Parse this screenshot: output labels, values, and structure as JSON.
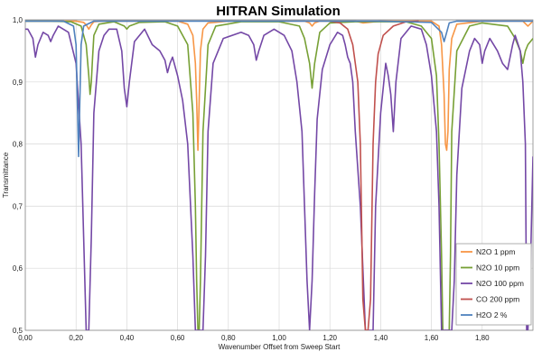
{
  "chart_data": {
    "type": "line",
    "title": "HITRAN Simulation",
    "xlabel": "Wavenumber Offset from Sweep Start",
    "ylabel": "Transmittance",
    "xlim": [
      0,
      2.0
    ],
    "ylim": [
      0.5,
      1.0
    ],
    "x_ticks": [
      "0,00",
      "0,20",
      "0,40",
      "0,60",
      "0,80",
      "1,00",
      "1,20",
      "1,40",
      "1,60",
      "1,80"
    ],
    "y_ticks": [
      "0,5",
      "0,6",
      "0,7",
      "0,8",
      "0,9",
      "1,0"
    ],
    "grid": true,
    "legend_position": "bottom-right",
    "series": [
      {
        "name": "N2O 1 ppm",
        "color": "#f79646",
        "x": [
          0.0,
          0.1,
          0.2,
          0.23,
          0.24,
          0.25,
          0.26,
          0.27,
          0.3,
          0.4,
          0.6,
          0.64,
          0.66,
          0.67,
          0.675,
          0.68,
          0.685,
          0.69,
          0.7,
          0.72,
          0.8,
          1.0,
          1.1,
          1.12,
          1.13,
          1.14,
          1.16,
          1.3,
          1.33,
          1.4,
          1.5,
          1.6,
          1.63,
          1.64,
          1.65,
          1.655,
          1.66,
          1.665,
          1.67,
          1.68,
          1.7,
          1.8,
          1.96,
          1.98,
          2.0
        ],
        "y": [
          0.998,
          0.998,
          0.998,
          0.996,
          0.992,
          0.985,
          0.992,
          0.997,
          0.998,
          0.998,
          0.998,
          0.993,
          0.975,
          0.93,
          0.87,
          0.79,
          0.87,
          0.95,
          0.985,
          0.995,
          0.998,
          0.998,
          0.998,
          0.995,
          0.99,
          0.995,
          0.998,
          0.998,
          0.995,
          0.998,
          0.998,
          0.998,
          0.99,
          0.96,
          0.88,
          0.8,
          0.79,
          0.82,
          0.92,
          0.97,
          0.993,
          0.998,
          0.998,
          0.99,
          0.998
        ]
      },
      {
        "name": "N2O 10 ppm",
        "color": "#77a035",
        "x": [
          0.0,
          0.1,
          0.18,
          0.22,
          0.24,
          0.25,
          0.255,
          0.26,
          0.265,
          0.27,
          0.29,
          0.35,
          0.39,
          0.4,
          0.41,
          0.45,
          0.55,
          0.6,
          0.64,
          0.66,
          0.67,
          0.675,
          0.68,
          0.685,
          0.69,
          0.7,
          0.72,
          0.75,
          0.85,
          1.0,
          1.08,
          1.1,
          1.12,
          1.13,
          1.14,
          1.16,
          1.2,
          1.3,
          1.4,
          1.5,
          1.56,
          1.6,
          1.62,
          1.63,
          1.64,
          1.645,
          1.65,
          1.66,
          1.67,
          1.675,
          1.68,
          1.7,
          1.75,
          1.8,
          1.9,
          1.93,
          1.95,
          1.96,
          1.97,
          1.98,
          2.0
        ],
        "y": [
          0.998,
          0.998,
          0.997,
          0.99,
          0.96,
          0.91,
          0.88,
          0.9,
          0.94,
          0.975,
          0.993,
          0.997,
          0.99,
          0.985,
          0.99,
          0.996,
          0.997,
          0.99,
          0.96,
          0.85,
          0.7,
          0.58,
          0.5,
          0.5,
          0.58,
          0.82,
          0.96,
          0.99,
          0.997,
          0.997,
          0.99,
          0.97,
          0.93,
          0.89,
          0.93,
          0.98,
          0.995,
          0.997,
          0.997,
          0.997,
          0.99,
          0.97,
          0.91,
          0.8,
          0.62,
          0.5,
          0.5,
          0.5,
          0.5,
          0.62,
          0.82,
          0.95,
          0.99,
          0.995,
          0.99,
          0.97,
          0.95,
          0.93,
          0.95,
          0.96,
          0.97
        ]
      },
      {
        "name": "N2O 100 ppm",
        "color": "#7448a6",
        "x": [
          0.0,
          0.01,
          0.03,
          0.04,
          0.05,
          0.07,
          0.09,
          0.1,
          0.11,
          0.13,
          0.17,
          0.2,
          0.22,
          0.23,
          0.24,
          0.245,
          0.25,
          0.26,
          0.27,
          0.29,
          0.31,
          0.33,
          0.36,
          0.38,
          0.39,
          0.4,
          0.41,
          0.43,
          0.47,
          0.5,
          0.53,
          0.55,
          0.56,
          0.57,
          0.58,
          0.6,
          0.62,
          0.64,
          0.66,
          0.67,
          0.68,
          0.69,
          0.7,
          0.71,
          0.72,
          0.74,
          0.78,
          0.85,
          0.88,
          0.9,
          0.91,
          0.92,
          0.94,
          0.98,
          1.02,
          1.05,
          1.07,
          1.09,
          1.1,
          1.11,
          1.12,
          1.13,
          1.14,
          1.15,
          1.17,
          1.2,
          1.23,
          1.25,
          1.26,
          1.27,
          1.28,
          1.29,
          1.3,
          1.32,
          1.34,
          1.35,
          1.36,
          1.37,
          1.38,
          1.4,
          1.42,
          1.43,
          1.44,
          1.45,
          1.46,
          1.48,
          1.52,
          1.56,
          1.58,
          1.6,
          1.62,
          1.63,
          1.64,
          1.65,
          1.66,
          1.67,
          1.68,
          1.69,
          1.7,
          1.72,
          1.75,
          1.77,
          1.79,
          1.8,
          1.81,
          1.83,
          1.86,
          1.88,
          1.9,
          1.92,
          1.93,
          1.95,
          1.96,
          1.97,
          1.975,
          1.98,
          1.99,
          2.0
        ],
        "y": [
          0.985,
          0.985,
          0.97,
          0.94,
          0.96,
          0.98,
          0.975,
          0.965,
          0.975,
          0.99,
          0.98,
          0.93,
          0.8,
          0.65,
          0.5,
          0.5,
          0.5,
          0.65,
          0.85,
          0.95,
          0.975,
          0.985,
          0.985,
          0.95,
          0.89,
          0.86,
          0.9,
          0.965,
          0.985,
          0.96,
          0.95,
          0.935,
          0.915,
          0.93,
          0.94,
          0.91,
          0.87,
          0.8,
          0.62,
          0.5,
          0.5,
          0.5,
          0.5,
          0.62,
          0.82,
          0.93,
          0.97,
          0.98,
          0.975,
          0.96,
          0.935,
          0.95,
          0.975,
          0.985,
          0.975,
          0.95,
          0.9,
          0.82,
          0.7,
          0.58,
          0.5,
          0.58,
          0.72,
          0.84,
          0.92,
          0.96,
          0.98,
          0.975,
          0.96,
          0.94,
          0.93,
          0.9,
          0.82,
          0.7,
          0.5,
          0.5,
          0.5,
          0.5,
          0.7,
          0.85,
          0.93,
          0.91,
          0.88,
          0.82,
          0.9,
          0.97,
          0.99,
          0.985,
          0.96,
          0.91,
          0.82,
          0.7,
          0.5,
          0.5,
          0.5,
          0.5,
          0.5,
          0.58,
          0.75,
          0.89,
          0.95,
          0.97,
          0.96,
          0.93,
          0.95,
          0.97,
          0.95,
          0.93,
          0.92,
          0.96,
          0.975,
          0.95,
          0.9,
          0.8,
          0.5,
          0.5,
          0.6,
          0.78
        ]
      },
      {
        "name": "CO 200 ppm",
        "color": "#c0504d",
        "x": [
          1.2,
          1.24,
          1.27,
          1.29,
          1.31,
          1.32,
          1.33,
          1.34,
          1.35,
          1.36,
          1.37,
          1.38,
          1.39,
          1.41,
          1.45,
          1.5,
          1.55
        ],
        "y": [
          0.998,
          0.995,
          0.985,
          0.96,
          0.9,
          0.8,
          0.55,
          0.5,
          0.5,
          0.55,
          0.8,
          0.9,
          0.945,
          0.975,
          0.99,
          0.997,
          0.998
        ]
      },
      {
        "name": "H2O 2 %",
        "color": "#4f81bd",
        "x": [
          0.0,
          0.15,
          0.19,
          0.2,
          0.205,
          0.21,
          0.215,
          0.22,
          0.23,
          0.27,
          0.4,
          0.6,
          0.8,
          1.0,
          1.2,
          1.4,
          1.6,
          1.64,
          1.65,
          1.66,
          1.67,
          1.7,
          1.8,
          2.0
        ],
        "y": [
          0.998,
          0.998,
          0.99,
          0.96,
          0.87,
          0.78,
          0.87,
          0.96,
          0.99,
          0.998,
          0.998,
          0.998,
          0.998,
          0.998,
          0.998,
          0.998,
          0.996,
          0.98,
          0.965,
          0.98,
          0.995,
          0.998,
          0.998,
          0.998
        ]
      }
    ]
  }
}
